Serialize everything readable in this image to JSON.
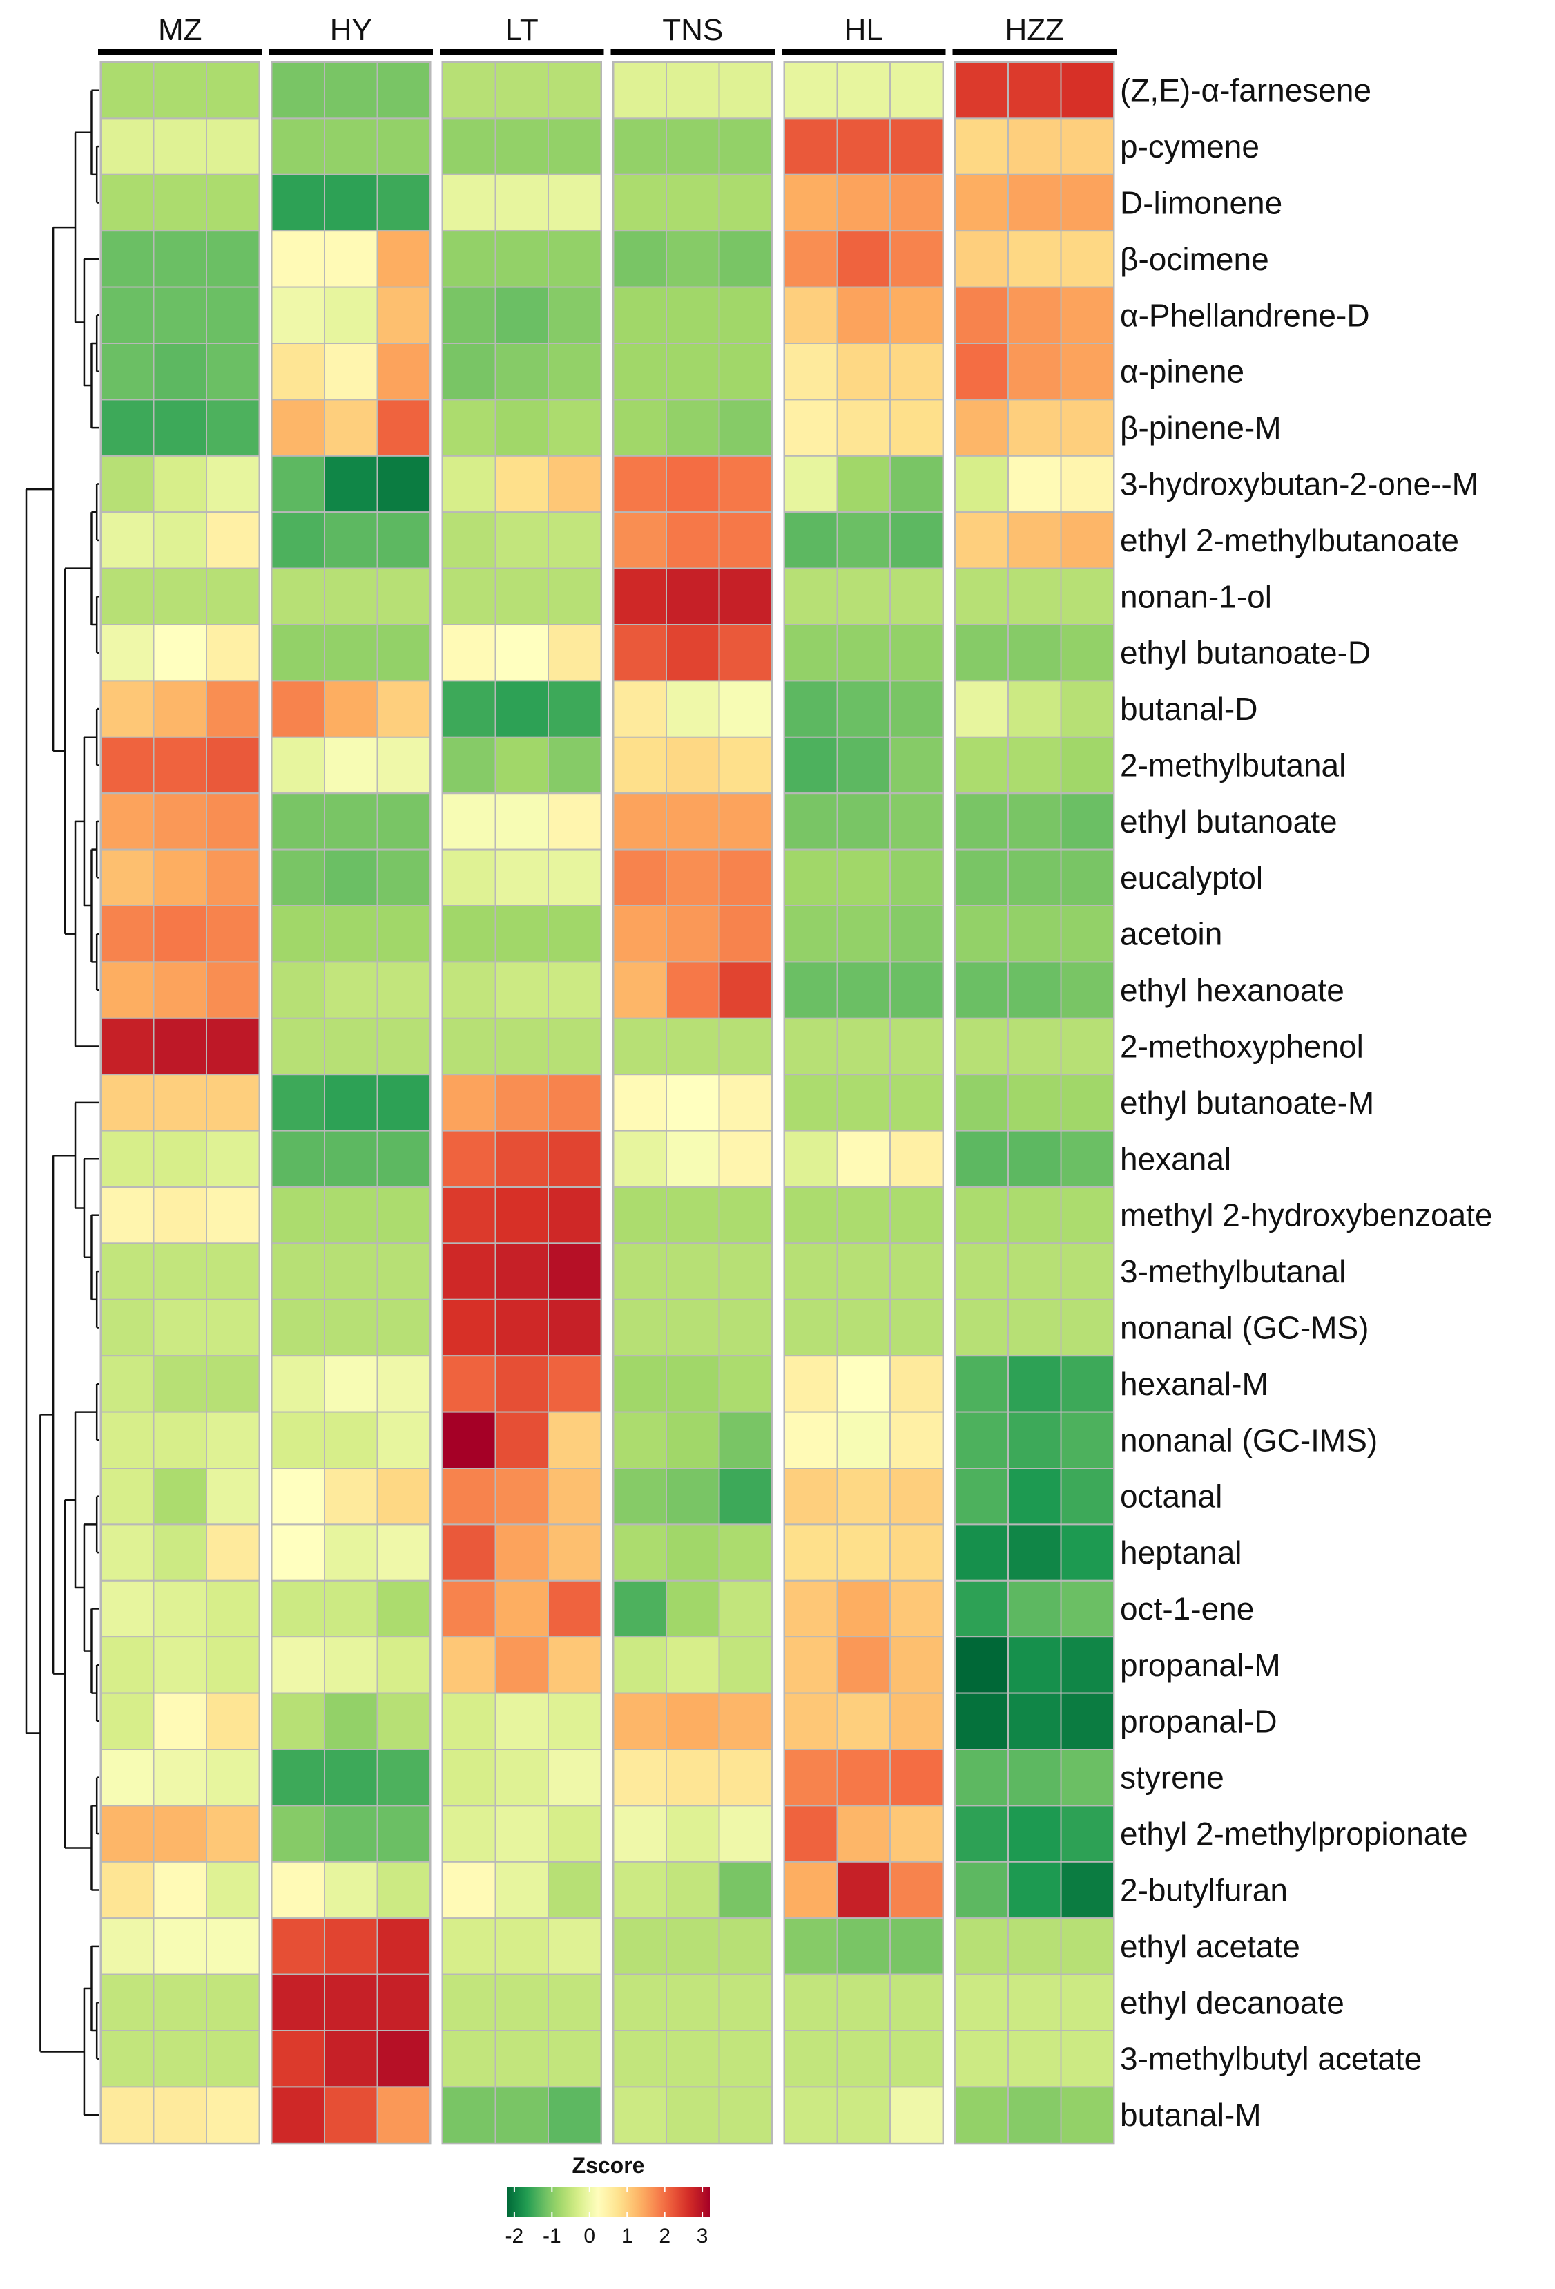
{
  "chart_data": {
    "type": "heatmap",
    "title": "",
    "legend": {
      "title": "Zscore",
      "ticks": [
        -2,
        -1,
        0,
        1,
        2,
        3
      ],
      "range": [
        -2.2,
        3.2
      ],
      "placement": "bottom-center",
      "colors": [
        "#006837",
        "#1a9850",
        "#66bd63",
        "#a6d96a",
        "#d9ef8b",
        "#ffffbf",
        "#fee08b",
        "#fdae61",
        "#f46d43",
        "#d73027",
        "#a50026"
      ]
    },
    "groups": [
      "MZ",
      "HY",
      "LT",
      "TNS",
      "HL",
      "HZZ"
    ],
    "replicates_per_group": 3,
    "rows": [
      "(Z,E)-α-farnesene",
      "p-cymene",
      "D-limonene",
      "β-ocimene",
      "α-Phellandrene-D",
      "α-pinene",
      "β-pinene-M",
      "3-hydroxybutan-2-one--M",
      "ethyl 2-methylbutanoate",
      "nonan-1-ol",
      "ethyl butanoate-D",
      "butanal-D",
      "2-methylbutanal",
      "ethyl butanoate",
      "eucalyptol",
      "acetoin",
      "ethyl hexanoate",
      "2-methoxyphenol",
      "ethyl butanoate-M",
      "hexanal",
      "methyl 2-hydroxybenzoate",
      "3-methylbutanal",
      "nonanal (GC-MS)",
      "hexanal-M",
      "nonanal (GC-IMS)",
      "octanal",
      "heptanal",
      "oct-1-ene",
      "propanal-M",
      "propanal-D",
      "styrene",
      "ethyl 2-methylpropionate",
      "2-butylfuran",
      "ethyl acetate",
      "ethyl decanoate",
      "3-methylbutyl acetate",
      "butanal-M"
    ],
    "values": [
      [
        -0.7,
        -0.7,
        -0.7,
        -1.1,
        -1.1,
        -1.1,
        -0.6,
        -0.6,
        -0.6,
        -0.2,
        -0.2,
        -0.2,
        -0.1,
        -0.1,
        -0.1,
        2.5,
        2.5,
        2.6
      ],
      [
        -0.2,
        -0.2,
        -0.2,
        -0.9,
        -0.9,
        -0.9,
        -0.9,
        -0.9,
        -0.9,
        -0.9,
        -0.9,
        -0.9,
        2.2,
        2.2,
        2.2,
        0.9,
        1.0,
        1.0
      ],
      [
        -0.7,
        -0.7,
        -0.7,
        -1.6,
        -1.6,
        -1.5,
        -0.1,
        -0.1,
        -0.1,
        -0.7,
        -0.7,
        -0.7,
        1.4,
        1.5,
        1.6,
        1.4,
        1.5,
        1.5
      ],
      [
        -1.2,
        -1.2,
        -1.2,
        0.3,
        0.3,
        1.4,
        -0.9,
        -0.9,
        -0.9,
        -1.1,
        -1.0,
        -1.1,
        1.7,
        2.1,
        1.8,
        1.0,
        0.9,
        0.9
      ],
      [
        -1.2,
        -1.2,
        -1.2,
        0.0,
        -0.1,
        1.2,
        -1.1,
        -1.2,
        -1.0,
        -0.8,
        -0.8,
        -0.8,
        1.0,
        1.5,
        1.4,
        1.8,
        1.6,
        1.5
      ],
      [
        -1.2,
        -1.3,
        -1.2,
        0.7,
        0.4,
        1.5,
        -1.1,
        -1.0,
        -0.9,
        -0.8,
        -0.8,
        -0.8,
        0.6,
        0.9,
        0.9,
        2.0,
        1.6,
        1.5
      ],
      [
        -1.5,
        -1.5,
        -1.4,
        1.3,
        1.0,
        2.1,
        -0.7,
        -0.8,
        -0.7,
        -0.8,
        -0.9,
        -1.0,
        0.5,
        0.7,
        0.8,
        1.3,
        1.0,
        1.0
      ],
      [
        -0.6,
        -0.3,
        -0.1,
        -1.3,
        -1.9,
        -2.0,
        -0.3,
        0.8,
        1.1,
        1.9,
        2.0,
        1.9,
        -0.1,
        -0.8,
        -1.1,
        -0.3,
        0.3,
        0.4
      ],
      [
        -0.1,
        -0.2,
        0.5,
        -1.4,
        -1.3,
        -1.3,
        -0.6,
        -0.5,
        -0.5,
        1.7,
        1.9,
        1.9,
        -1.3,
        -1.2,
        -1.3,
        1.0,
        1.2,
        1.3
      ],
      [
        -0.6,
        -0.6,
        -0.6,
        -0.6,
        -0.6,
        -0.6,
        -0.6,
        -0.6,
        -0.6,
        2.7,
        2.8,
        2.8,
        -0.6,
        -0.6,
        -0.6,
        -0.6,
        -0.6,
        -0.6
      ],
      [
        0.0,
        0.2,
        0.5,
        -0.9,
        -0.9,
        -0.9,
        0.3,
        0.2,
        0.6,
        2.2,
        2.4,
        2.2,
        -0.9,
        -0.9,
        -0.9,
        -1.0,
        -1.0,
        -0.9
      ],
      [
        1.1,
        1.3,
        1.7,
        1.8,
        1.4,
        1.0,
        -1.5,
        -1.6,
        -1.5,
        0.6,
        0.0,
        0.1,
        -1.3,
        -1.2,
        -1.1,
        -0.1,
        -0.4,
        -0.6
      ],
      [
        2.1,
        2.1,
        2.2,
        -0.1,
        0.1,
        0.0,
        -1.0,
        -0.8,
        -1.0,
        0.8,
        0.9,
        0.8,
        -1.4,
        -1.3,
        -1.0,
        -0.7,
        -0.7,
        -0.8
      ],
      [
        1.5,
        1.6,
        1.7,
        -1.1,
        -1.1,
        -1.1,
        0.1,
        0.1,
        0.4,
        1.5,
        1.5,
        1.5,
        -1.1,
        -1.1,
        -1.0,
        -1.1,
        -1.1,
        -1.2
      ],
      [
        1.2,
        1.4,
        1.6,
        -1.1,
        -1.2,
        -1.1,
        -0.2,
        -0.1,
        -0.1,
        1.8,
        1.7,
        1.8,
        -0.8,
        -0.8,
        -0.9,
        -1.1,
        -1.1,
        -1.1
      ],
      [
        1.8,
        1.9,
        1.8,
        -0.8,
        -0.8,
        -0.8,
        -0.8,
        -0.8,
        -0.8,
        1.5,
        1.6,
        1.8,
        -0.9,
        -0.9,
        -1.0,
        -0.9,
        -0.9,
        -0.9
      ],
      [
        1.4,
        1.5,
        1.7,
        -0.6,
        -0.5,
        -0.5,
        -0.5,
        -0.4,
        -0.4,
        1.3,
        1.9,
        2.4,
        -1.2,
        -1.2,
        -1.2,
        -1.2,
        -1.2,
        -1.1
      ],
      [
        2.8,
        2.9,
        2.9,
        -0.6,
        -0.6,
        -0.6,
        -0.6,
        -0.6,
        -0.6,
        -0.6,
        -0.6,
        -0.6,
        -0.6,
        -0.6,
        -0.6,
        -0.6,
        -0.6,
        -0.6
      ],
      [
        1.0,
        1.0,
        1.0,
        -1.5,
        -1.6,
        -1.6,
        1.5,
        1.7,
        1.8,
        0.3,
        0.2,
        0.4,
        -0.7,
        -0.7,
        -0.7,
        -0.9,
        -0.8,
        -0.8
      ],
      [
        -0.3,
        -0.3,
        -0.2,
        -1.3,
        -1.3,
        -1.3,
        2.1,
        2.3,
        2.4,
        -0.1,
        0.1,
        0.4,
        -0.2,
        0.3,
        0.5,
        -1.3,
        -1.3,
        -1.2
      ],
      [
        0.4,
        0.5,
        0.4,
        -0.7,
        -0.7,
        -0.7,
        2.5,
        2.6,
        2.7,
        -0.7,
        -0.7,
        -0.7,
        -0.7,
        -0.7,
        -0.7,
        -0.7,
        -0.7,
        -0.7
      ],
      [
        -0.5,
        -0.5,
        -0.5,
        -0.6,
        -0.6,
        -0.6,
        2.7,
        2.8,
        3.0,
        -0.6,
        -0.6,
        -0.6,
        -0.6,
        -0.6,
        -0.6,
        -0.6,
        -0.6,
        -0.6
      ],
      [
        -0.5,
        -0.4,
        -0.4,
        -0.6,
        -0.6,
        -0.6,
        2.6,
        2.7,
        2.8,
        -0.6,
        -0.6,
        -0.6,
        -0.6,
        -0.6,
        -0.6,
        -0.6,
        -0.6,
        -0.6
      ],
      [
        -0.4,
        -0.6,
        -0.6,
        -0.1,
        0.1,
        0.0,
        2.1,
        2.3,
        2.1,
        -0.8,
        -0.8,
        -0.7,
        0.5,
        0.2,
        0.6,
        -1.4,
        -1.6,
        -1.5
      ],
      [
        -0.3,
        -0.3,
        -0.2,
        -0.3,
        -0.3,
        -0.1,
        3.2,
        2.3,
        1.0,
        -0.7,
        -0.8,
        -1.1,
        0.3,
        0.1,
        0.5,
        -1.4,
        -1.5,
        -1.4
      ],
      [
        -0.3,
        -0.7,
        -0.1,
        0.2,
        0.6,
        0.9,
        1.8,
        1.7,
        1.2,
        -1.0,
        -1.1,
        -1.5,
        1.0,
        0.9,
        1.0,
        -1.4,
        -1.7,
        -1.5
      ],
      [
        -0.2,
        -0.4,
        0.6,
        0.2,
        -0.1,
        0.0,
        2.2,
        1.5,
        1.2,
        -0.7,
        -0.8,
        -0.7,
        0.8,
        0.8,
        0.9,
        -1.8,
        -1.9,
        -1.7
      ],
      [
        -0.1,
        -0.2,
        -0.3,
        -0.4,
        -0.4,
        -0.7,
        1.8,
        1.4,
        2.1,
        -1.4,
        -0.8,
        -0.5,
        1.1,
        1.4,
        1.1,
        -1.6,
        -1.3,
        -1.2
      ],
      [
        -0.3,
        -0.2,
        -0.3,
        0.0,
        -0.1,
        -0.3,
        1.1,
        1.6,
        1.1,
        -0.4,
        -0.3,
        -0.5,
        1.1,
        1.6,
        1.2,
        -2.2,
        -1.8,
        -1.9
      ],
      [
        -0.3,
        0.3,
        0.7,
        -0.6,
        -0.9,
        -0.6,
        -0.3,
        -0.1,
        -0.2,
        1.3,
        1.4,
        1.3,
        1.1,
        1.0,
        1.2,
        -2.1,
        -1.9,
        -2.0
      ],
      [
        0.1,
        0.0,
        -0.1,
        -1.5,
        -1.5,
        -1.4,
        -0.3,
        -0.2,
        0.0,
        0.6,
        0.7,
        0.7,
        1.8,
        1.9,
        2.0,
        -1.3,
        -1.3,
        -1.2
      ],
      [
        1.3,
        1.3,
        1.1,
        -1.0,
        -1.2,
        -1.2,
        -0.2,
        -0.1,
        -0.3,
        0.0,
        -0.2,
        0.0,
        2.1,
        1.3,
        1.1,
        -1.6,
        -1.7,
        -1.6
      ],
      [
        0.7,
        0.3,
        -0.2,
        0.3,
        -0.1,
        -0.4,
        0.3,
        -0.1,
        -0.6,
        -0.4,
        -0.5,
        -1.1,
        1.4,
        2.8,
        1.8,
        -1.3,
        -1.7,
        -2.0
      ],
      [
        0.0,
        0.1,
        0.1,
        2.3,
        2.4,
        2.7,
        -0.3,
        -0.3,
        -0.2,
        -0.6,
        -0.6,
        -0.6,
        -1.0,
        -1.1,
        -1.1,
        -0.6,
        -0.6,
        -0.6
      ],
      [
        -0.5,
        -0.5,
        -0.5,
        2.8,
        2.8,
        2.8,
        -0.5,
        -0.5,
        -0.5,
        -0.5,
        -0.5,
        -0.5,
        -0.5,
        -0.5,
        -0.5,
        -0.4,
        -0.4,
        -0.4
      ],
      [
        -0.5,
        -0.5,
        -0.5,
        2.5,
        2.8,
        3.0,
        -0.5,
        -0.5,
        -0.5,
        -0.5,
        -0.5,
        -0.5,
        -0.5,
        -0.5,
        -0.5,
        -0.4,
        -0.4,
        -0.4
      ],
      [
        0.6,
        0.6,
        0.5,
        2.7,
        2.3,
        1.6,
        -1.1,
        -1.1,
        -1.3,
        -0.4,
        -0.5,
        -0.5,
        -0.4,
        -0.4,
        0.0,
        -0.9,
        -1.0,
        -0.9
      ]
    ],
    "row_dendrogram": [
      [
        [
          [
            0,
            [
              1,
              2
            ]
          ],
          [
            3,
            [
              [
                4,
                5
              ],
              6
            ]
          ]
        ],
        [
          [
            [
              7,
              8
            ],
            [
              9,
              10
            ]
          ],
          [
            [
              [
                11,
                12
              ],
              [
                [
                  13,
                  14
                ],
                [
                  15,
                  16
                ]
              ]
            ],
            17
          ]
        ]
      ],
      [
        [
          [
            18,
            [
              19,
              [
                20,
                [
                  21,
                  22
                ]
              ]
            ]
          ],
          [
            [
              [
                23,
                24
              ],
              [
                [
                  25,
                  26
                ],
                [
                  27,
                  [
                    28,
                    29
                  ]
                ]
              ]
            ],
            [
              [
                30,
                31
              ],
              32
            ]
          ]
        ],
        [
          [
            33,
            [
              34,
              35
            ]
          ],
          36
        ]
      ]
    ]
  }
}
